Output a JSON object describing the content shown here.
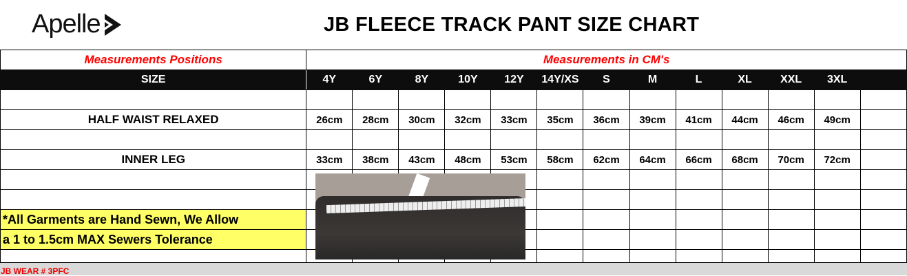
{
  "brand": "Apelle",
  "title": "JB FLEECE TRACK PANT SIZE CHART",
  "headers": {
    "positions": "Measurements Positions",
    "units": "Measurements in CM's",
    "size": "SIZE"
  },
  "sizes": [
    "4Y",
    "6Y",
    "8Y",
    "10Y",
    "12Y",
    "14Y/XS",
    "S",
    "M",
    "L",
    "XL",
    "XXL",
    "3XL",
    ""
  ],
  "rows": [
    {
      "label": "HALF WAIST RELAXED",
      "values": [
        "26cm",
        "28cm",
        "30cm",
        "32cm",
        "33cm",
        "35cm",
        "36cm",
        "39cm",
        "41cm",
        "44cm",
        "46cm",
        "49cm",
        ""
      ]
    },
    {
      "label": "INNER LEG",
      "values": [
        "33cm",
        "38cm",
        "43cm",
        "48cm",
        "53cm",
        "58cm",
        "62cm",
        "64cm",
        "66cm",
        "68cm",
        "70cm",
        "72cm",
        ""
      ]
    }
  ],
  "note": [
    "*All Garments are Hand Sewn, We Allow",
    "a 1 to 1.5cm MAX Sewers Tolerance"
  ],
  "footer": "JB WEAR # 3PFC",
  "colors": {
    "header_text": "#ff0000",
    "size_bar": "#0d0d0d",
    "note_bg": "#ffff66",
    "footer_bg": "#d9d9d9"
  }
}
